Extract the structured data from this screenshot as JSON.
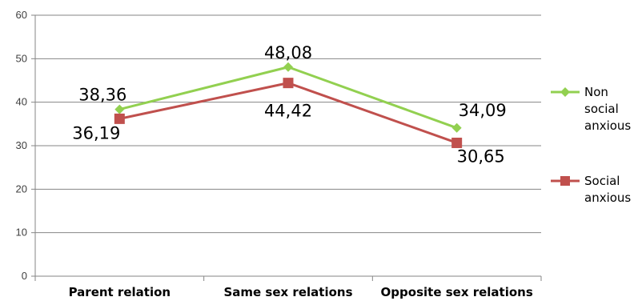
{
  "chart_data": {
    "type": "line",
    "title": "",
    "xlabel": "",
    "ylabel": "",
    "categories": [
      "Parent relation",
      "Same sex relations",
      "Opposite sex relations"
    ],
    "ylim": [
      0,
      60
    ],
    "yticks": [
      "0",
      "10",
      "20",
      "30",
      "40",
      "50",
      "60"
    ],
    "grid": true,
    "legend_position": "right",
    "series": [
      {
        "name": "Non social anxious",
        "legend_lines": [
          "Non",
          "social",
          "anxious"
        ],
        "values": [
          38.36,
          48.08,
          34.09
        ],
        "labels": [
          "38,36",
          "48,08",
          "34,09"
        ],
        "color": "#92D050",
        "marker": "diamond"
      },
      {
        "name": "Social anxious",
        "legend_lines": [
          "Social",
          "anxious"
        ],
        "values": [
          36.19,
          44.42,
          30.65
        ],
        "labels": [
          "36,19",
          "44,42",
          "30,65"
        ],
        "color": "#C0504D",
        "marker": "square"
      }
    ]
  }
}
